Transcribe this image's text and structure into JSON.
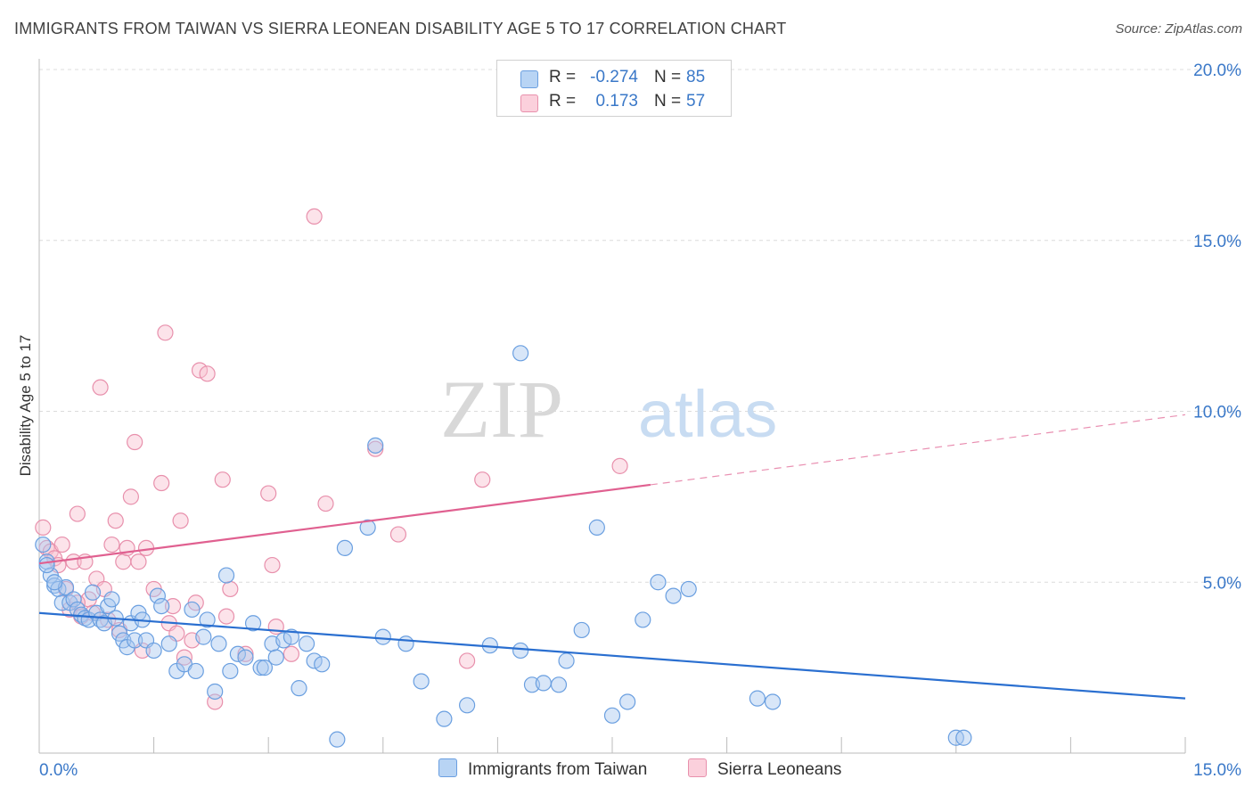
{
  "header": {
    "title": "IMMIGRANTS FROM TAIWAN VS SIERRA LEONEAN DISABILITY AGE 5 TO 17 CORRELATION CHART",
    "source": "Source: ZipAtlas.com"
  },
  "watermark": {
    "part1": "ZIP",
    "part2": "atlas"
  },
  "legend": {
    "rows": [
      {
        "r_label": "R =",
        "r_value": "-0.274",
        "n_label": "N =",
        "n_value": "85",
        "color": "#a8c8f0"
      },
      {
        "r_label": "R =",
        "r_value": "0.173",
        "n_label": "N =",
        "n_value": "57",
        "color": "#f8b8cc"
      }
    ]
  },
  "bottom_legend": {
    "items": [
      {
        "label": "Immigrants from Taiwan",
        "color": "#a8c8f0"
      },
      {
        "label": "Sierra Leoneans",
        "color": "#f8b8cc"
      }
    ]
  },
  "chart_data": {
    "type": "scatter",
    "title": "IMMIGRANTS FROM TAIWAN VS SIERRA LEONEAN DISABILITY AGE 5 TO 17 CORRELATION CHART",
    "xlabel": "",
    "ylabel": "Disability Age 5 to 17",
    "xlim": [
      0,
      15
    ],
    "ylim": [
      0,
      20
    ],
    "x_tick_labels": [
      "0.0%",
      "15.0%"
    ],
    "y_tick_labels": [
      "5.0%",
      "10.0%",
      "15.0%",
      "20.0%"
    ],
    "y_ticks": [
      5,
      10,
      15,
      20
    ],
    "grid": true,
    "legend_position": "top-center",
    "colors": {
      "taiwan_fill": "#a8c8f0",
      "taiwan_stroke": "#6a9fe0",
      "taiwan_line": "#2a6fd0",
      "sierra_fill": "#f8c0d0",
      "sierra_stroke": "#e890ac",
      "sierra_line": "#e06090",
      "axis_text": "#3a78c8"
    },
    "series": [
      {
        "name": "Immigrants from Taiwan",
        "R": -0.274,
        "N": 85,
        "trend": {
          "x": [
            0,
            15
          ],
          "y": [
            4.1,
            1.6
          ]
        },
        "points": [
          [
            0.05,
            6.1
          ],
          [
            0.1,
            5.6
          ],
          [
            0.15,
            5.2
          ],
          [
            0.2,
            4.9
          ],
          [
            0.25,
            4.8
          ],
          [
            0.3,
            4.4
          ],
          [
            0.35,
            4.85
          ],
          [
            0.4,
            4.4
          ],
          [
            0.45,
            4.5
          ],
          [
            0.5,
            4.2
          ],
          [
            0.55,
            4.05
          ],
          [
            0.6,
            3.95
          ],
          [
            0.65,
            3.9
          ],
          [
            0.7,
            4.7
          ],
          [
            0.75,
            4.1
          ],
          [
            0.8,
            3.9
          ],
          [
            0.85,
            3.8
          ],
          [
            0.9,
            4.3
          ],
          [
            0.95,
            4.5
          ],
          [
            1.0,
            3.95
          ],
          [
            1.05,
            3.5
          ],
          [
            1.1,
            3.3
          ],
          [
            1.15,
            3.1
          ],
          [
            1.2,
            3.8
          ],
          [
            1.25,
            3.3
          ],
          [
            1.3,
            4.1
          ],
          [
            1.35,
            3.9
          ],
          [
            1.4,
            3.3
          ],
          [
            1.5,
            3.0
          ],
          [
            1.55,
            4.6
          ],
          [
            1.6,
            4.3
          ],
          [
            1.7,
            3.2
          ],
          [
            1.8,
            2.4
          ],
          [
            1.9,
            2.6
          ],
          [
            2.0,
            4.2
          ],
          [
            2.05,
            2.4
          ],
          [
            2.15,
            3.4
          ],
          [
            2.2,
            3.9
          ],
          [
            2.3,
            1.8
          ],
          [
            2.35,
            3.2
          ],
          [
            2.45,
            5.2
          ],
          [
            2.5,
            2.4
          ],
          [
            2.6,
            2.9
          ],
          [
            2.7,
            2.8
          ],
          [
            2.8,
            3.8
          ],
          [
            2.9,
            2.5
          ],
          [
            2.95,
            2.5
          ],
          [
            3.05,
            3.2
          ],
          [
            3.1,
            2.8
          ],
          [
            3.2,
            3.3
          ],
          [
            3.3,
            3.4
          ],
          [
            3.4,
            1.9
          ],
          [
            3.5,
            3.2
          ],
          [
            3.6,
            2.7
          ],
          [
            3.7,
            2.6
          ],
          [
            3.9,
            0.4
          ],
          [
            4.0,
            6.0
          ],
          [
            4.3,
            6.6
          ],
          [
            4.4,
            9.0
          ],
          [
            4.5,
            3.4
          ],
          [
            4.8,
            3.2
          ],
          [
            5.0,
            2.1
          ],
          [
            5.3,
            1.0
          ],
          [
            5.6,
            1.4
          ],
          [
            5.9,
            3.15
          ],
          [
            6.3,
            11.7
          ],
          [
            6.3,
            3.0
          ],
          [
            6.45,
            2.0
          ],
          [
            6.6,
            2.05
          ],
          [
            6.8,
            2.0
          ],
          [
            6.9,
            2.7
          ],
          [
            7.1,
            3.6
          ],
          [
            7.3,
            6.6
          ],
          [
            7.5,
            1.1
          ],
          [
            7.7,
            1.5
          ],
          [
            7.9,
            3.9
          ],
          [
            8.1,
            5.0
          ],
          [
            8.3,
            4.6
          ],
          [
            8.5,
            4.8
          ],
          [
            9.4,
            1.6
          ],
          [
            9.6,
            1.5
          ],
          [
            12.0,
            0.45
          ],
          [
            12.1,
            0.45
          ],
          [
            0.1,
            5.5
          ],
          [
            0.2,
            5.0
          ]
        ]
      },
      {
        "name": "Sierra Leoneans",
        "R": 0.173,
        "N": 57,
        "trend": {
          "x": [
            0,
            8
          ],
          "y": [
            5.55,
            7.85
          ]
        },
        "trend_dashed": {
          "x": [
            8,
            15
          ],
          "y": [
            7.85,
            9.9
          ]
        },
        "points": [
          [
            0.05,
            6.6
          ],
          [
            0.1,
            6.0
          ],
          [
            0.15,
            5.9
          ],
          [
            0.2,
            5.7
          ],
          [
            0.25,
            5.5
          ],
          [
            0.3,
            6.1
          ],
          [
            0.35,
            4.8
          ],
          [
            0.4,
            4.2
          ],
          [
            0.45,
            5.6
          ],
          [
            0.5,
            7.0
          ],
          [
            0.55,
            4.0
          ],
          [
            0.6,
            5.6
          ],
          [
            0.65,
            4.5
          ],
          [
            0.7,
            4.1
          ],
          [
            0.75,
            5.1
          ],
          [
            0.8,
            10.7
          ],
          [
            0.85,
            4.8
          ],
          [
            0.9,
            3.9
          ],
          [
            0.95,
            6.1
          ],
          [
            1.0,
            6.8
          ],
          [
            1.05,
            3.6
          ],
          [
            1.1,
            5.6
          ],
          [
            1.15,
            6.0
          ],
          [
            1.2,
            7.5
          ],
          [
            1.25,
            9.1
          ],
          [
            1.3,
            5.6
          ],
          [
            1.35,
            3.0
          ],
          [
            1.4,
            6.0
          ],
          [
            1.5,
            4.8
          ],
          [
            1.6,
            7.9
          ],
          [
            1.65,
            12.3
          ],
          [
            1.7,
            3.8
          ],
          [
            1.75,
            4.3
          ],
          [
            1.8,
            3.5
          ],
          [
            1.85,
            6.8
          ],
          [
            1.9,
            2.8
          ],
          [
            2.0,
            3.3
          ],
          [
            2.05,
            4.4
          ],
          [
            2.1,
            11.2
          ],
          [
            2.2,
            11.1
          ],
          [
            2.3,
            1.5
          ],
          [
            2.4,
            8.0
          ],
          [
            2.45,
            4.0
          ],
          [
            2.5,
            4.8
          ],
          [
            2.7,
            2.9
          ],
          [
            3.0,
            7.6
          ],
          [
            3.05,
            5.5
          ],
          [
            3.1,
            3.7
          ],
          [
            3.3,
            2.9
          ],
          [
            3.6,
            15.7
          ],
          [
            3.75,
            7.3
          ],
          [
            4.4,
            8.9
          ],
          [
            4.7,
            6.4
          ],
          [
            5.6,
            2.7
          ],
          [
            5.8,
            8.0
          ],
          [
            7.6,
            8.4
          ],
          [
            0.5,
            4.4
          ]
        ]
      }
    ]
  }
}
